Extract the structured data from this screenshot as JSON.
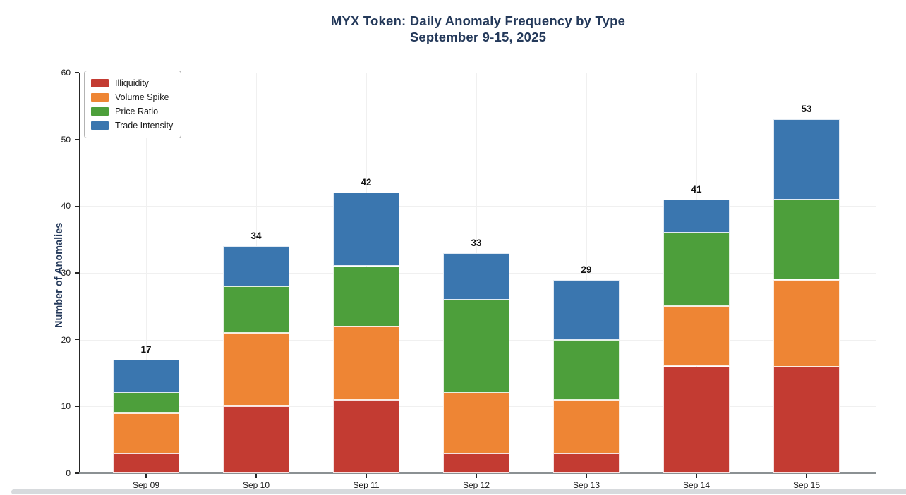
{
  "title": {
    "line1": "MYX Token: Daily Anomaly Frequency by Type",
    "line2": "September 9-15, 2025"
  },
  "chart_data": {
    "type": "bar",
    "stacked": true,
    "title": "MYX Token: Daily Anomaly Frequency by Type",
    "subtitle": "September 9-15, 2025",
    "categories": [
      "Sep 09",
      "Sep 10",
      "Sep 11",
      "Sep 12",
      "Sep 13",
      "Sep 14",
      "Sep 15"
    ],
    "series": [
      {
        "name": "Illiquidity",
        "color": "#c33b32",
        "values": [
          3,
          10,
          11,
          3,
          3,
          16,
          16
        ]
      },
      {
        "name": "Volume Spike",
        "color": "#ee8534",
        "values": [
          6,
          11,
          11,
          9,
          8,
          9,
          13
        ]
      },
      {
        "name": "Price Ratio",
        "color": "#4d9f3b",
        "values": [
          3,
          7,
          9,
          14,
          9,
          11,
          12
        ]
      },
      {
        "name": "Trade Intensity",
        "color": "#3a76af",
        "values": [
          5,
          6,
          11,
          7,
          9,
          5,
          12
        ]
      }
    ],
    "totals": [
      17,
      34,
      42,
      33,
      29,
      41,
      53
    ],
    "xlabel": "",
    "ylabel": "Number of Anomalies",
    "ylim": [
      0,
      60
    ],
    "yticks": [
      0,
      10,
      20,
      30,
      40,
      50,
      60
    ],
    "grid": true,
    "legend_position": "upper-left"
  },
  "colors": {
    "title_text": "#24395a",
    "axis_label_text": "#24395a",
    "tick_label_text": "#1a1a1a",
    "grid_line": "#f0f0f0",
    "left_spine": "#262626",
    "bottom_spine": "#8b9193",
    "tick_mark": "#262626",
    "bottom_scrollbar": "#d7dadd",
    "background": "#ffffff"
  }
}
